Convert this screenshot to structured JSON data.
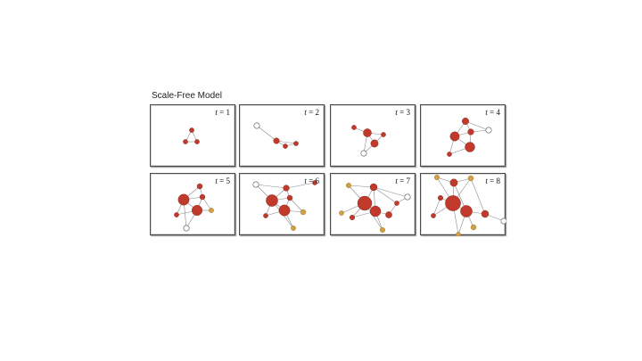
{
  "title": "Scale-Free Model",
  "colors": {
    "hub": "#c0392b",
    "peripheral": "#d4a046",
    "new_node": "#ffffff",
    "edge": "#8a8a8a"
  },
  "panels": [
    {
      "label_var": "t",
      "label_eq": "= 1"
    },
    {
      "label_var": "t",
      "label_eq": "= 2"
    },
    {
      "label_var": "t",
      "label_eq": "= 3"
    },
    {
      "label_var": "t",
      "label_eq": "= 4"
    },
    {
      "label_var": "t",
      "label_eq": "= 5"
    },
    {
      "label_var": "t",
      "label_eq": "= 6"
    },
    {
      "label_var": "t",
      "label_eq": "= 7"
    },
    {
      "label_var": "t",
      "label_eq": "= 8"
    }
  ]
}
